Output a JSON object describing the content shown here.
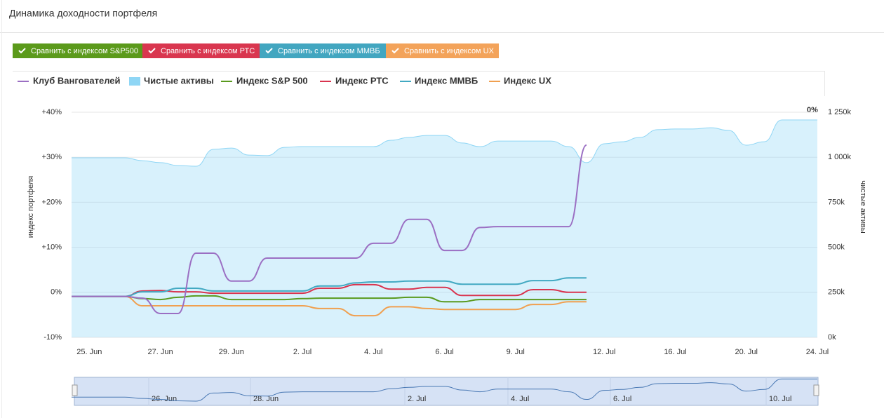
{
  "header": {
    "title": "Динамика доходности портфеля"
  },
  "buttons": [
    {
      "label": "Сравнить с индексом S&P500",
      "color": "#5b9a1b"
    },
    {
      "label": "Сравнить с индексом РТС",
      "color": "#d9364f"
    },
    {
      "label": "Сравнить с индексом ММВБ",
      "color": "#42a6c0"
    },
    {
      "label": "Сравнить с индексом UX",
      "color": "#f3a35a"
    }
  ],
  "chart_data": {
    "type": "line",
    "y_label": "индекс портфеля",
    "y2_label": "чистые активы",
    "annotation": "0%",
    "categories": [
      null,
      "25. Jun",
      null,
      null,
      null,
      "27. Jun",
      null,
      null,
      null,
      "29. Jun",
      null,
      null,
      null,
      "2. Jul",
      null,
      null,
      null,
      "4. Jul",
      null,
      null,
      null,
      "6. Jul",
      null,
      null,
      null,
      "9. Jul",
      null,
      null,
      null,
      null,
      "12. Jul",
      null,
      null,
      null,
      "16. Jul",
      null,
      null,
      null,
      "20. Jul",
      null,
      null,
      null,
      "24. Jul"
    ],
    "ylim": [
      -10,
      40
    ],
    "yticks": [
      {
        "value": -10,
        "label": "-10%"
      },
      {
        "value": 0,
        "label": "0%"
      },
      {
        "value": 10,
        "label": "+10%"
      },
      {
        "value": 20,
        "label": "+20%"
      },
      {
        "value": 30,
        "label": "+30%"
      },
      {
        "value": 40,
        "label": "+40%"
      }
    ],
    "y2lim": [
      0,
      1250000
    ],
    "y2ticks": [
      {
        "value": 0,
        "label": "0k"
      },
      {
        "value": 250000,
        "label": "250k"
      },
      {
        "value": 500000,
        "label": "500k"
      },
      {
        "value": 750000,
        "label": "750k"
      },
      {
        "value": 1000000,
        "label": "1 000k"
      },
      {
        "value": 1250000,
        "label": "1 250k"
      }
    ],
    "grid": true,
    "series": [
      {
        "name": "Клуб Вангователей",
        "color": "#9b6fc3",
        "values": [
          -0.9,
          -0.9,
          -0.9,
          -0.9,
          -1.3,
          -4.7,
          -4.7,
          8.7,
          8.7,
          2.5,
          2.5,
          7.6,
          7.6,
          7.6,
          7.6,
          7.6,
          7.6,
          10.9,
          10.9,
          16.2,
          16.2,
          9.3,
          9.3,
          14.4,
          14.6,
          14.6,
          14.6,
          14.6,
          14.6,
          32.7,
          null,
          null,
          null,
          null,
          null,
          null,
          null,
          null,
          null,
          null,
          null,
          null,
          null
        ]
      },
      {
        "name": "Чистые активы",
        "type": "area",
        "axis": "y2",
        "color": "#8fd6f5",
        "values": [
          997000,
          997000,
          997000,
          997000,
          981000,
          970000,
          954000,
          950000,
          1044000,
          1051000,
          1012000,
          1009000,
          1055000,
          1059000,
          1059000,
          1059000,
          1059000,
          1059000,
          1094000,
          1110000,
          1121000,
          1121000,
          1079000,
          1059000,
          1090000,
          1090000,
          1090000,
          1090000,
          1059000,
          970000,
          1075000,
          1086000,
          1110000,
          1153000,
          1157000,
          1157000,
          1164000,
          1149000,
          1067000,
          1086000,
          1207000,
          1207000,
          1207000
        ]
      },
      {
        "name": "Индекс S&P 500",
        "color": "#5a9a1e",
        "values": [
          -0.9,
          -0.9,
          -0.9,
          -0.9,
          -1.4,
          -1.6,
          -1.1,
          -0.8,
          -0.8,
          -1.6,
          -1.6,
          -1.6,
          -1.6,
          -1.4,
          -1.3,
          -1.3,
          -1.3,
          -1.3,
          -1.3,
          -1.1,
          -1.1,
          -2.1,
          -2.1,
          -1.6,
          -1.6,
          -1.6,
          -1.6,
          -1.6,
          -1.6,
          -1.6,
          null,
          null,
          null,
          null,
          null,
          null,
          null,
          null,
          null,
          null,
          null,
          null,
          null
        ]
      },
      {
        "name": "Индекс РТС",
        "color": "#d9344f",
        "values": [
          -0.9,
          -0.9,
          -0.9,
          -0.9,
          0.3,
          0.4,
          0.1,
          0.1,
          -0.2,
          -0.2,
          -0.2,
          -0.2,
          -0.2,
          -0.2,
          0.9,
          0.9,
          1.7,
          1.7,
          0.7,
          0.7,
          1.1,
          1.1,
          -0.7,
          -0.7,
          -0.7,
          -0.7,
          0.6,
          0.6,
          0.0,
          0.0,
          null,
          null,
          null,
          null,
          null,
          null,
          null,
          null,
          null,
          null,
          null,
          null,
          null
        ]
      },
      {
        "name": "Индекс ММВБ",
        "color": "#42a9c2",
        "values": [
          -0.9,
          -0.9,
          -0.9,
          -0.9,
          0.1,
          0.1,
          0.9,
          0.9,
          0.3,
          0.3,
          0.3,
          0.3,
          0.3,
          0.3,
          1.4,
          1.4,
          2.1,
          2.3,
          2.3,
          2.5,
          2.5,
          2.5,
          1.8,
          1.8,
          1.8,
          1.8,
          2.6,
          2.6,
          3.2,
          3.2,
          null,
          null,
          null,
          null,
          null,
          null,
          null,
          null,
          null,
          null,
          null,
          null,
          null
        ]
      },
      {
        "name": "Индекс UX",
        "color": "#f0a050",
        "values": [
          -0.9,
          -0.9,
          -0.9,
          -0.9,
          -3.0,
          -3.0,
          -3.0,
          -3.0,
          -3.0,
          -3.0,
          -3.0,
          -3.0,
          -3.0,
          -3.0,
          -3.6,
          -3.6,
          -5.2,
          -5.2,
          -3.2,
          -3.2,
          -3.6,
          -3.8,
          -3.8,
          -3.8,
          -3.8,
          -3.8,
          -2.7,
          -2.7,
          -2.1,
          -2.1,
          null,
          null,
          null,
          null,
          null,
          null,
          null,
          null,
          null,
          null,
          null,
          null,
          null
        ]
      }
    ]
  },
  "navigator": {
    "labels": [
      "26. Jun",
      "28. Jun",
      "2. Jul",
      "4. Jul",
      "6. Jul",
      "10. Jul"
    ]
  }
}
